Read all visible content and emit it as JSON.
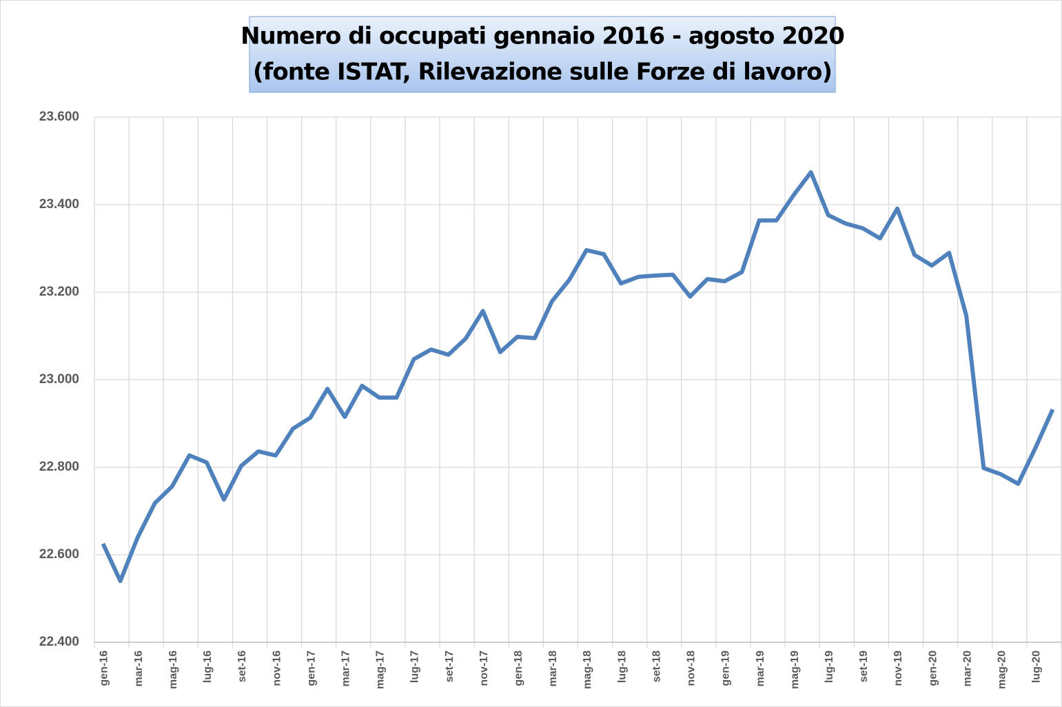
{
  "chart_data": {
    "type": "line",
    "title": "Numero di occupati gennaio 2016 - agosto 2020",
    "subtitle": "(fonte ISTAT, Rilevazione sulle Forze di lavoro)",
    "categories": [
      "gen-16",
      null,
      "mar-16",
      null,
      "mag-16",
      null,
      "lug-16",
      null,
      "set-16",
      null,
      "nov-16",
      null,
      "gen-17",
      null,
      "mar-17",
      null,
      "mag-17",
      null,
      "lug-17",
      null,
      "set-17",
      null,
      "nov-17",
      null,
      "gen-18",
      null,
      "mar-18",
      null,
      "mag-18",
      null,
      "lug-18",
      null,
      "set-18",
      null,
      "nov-18",
      null,
      "gen-19",
      null,
      "mar-19",
      null,
      "mag-19",
      null,
      "lug-19",
      null,
      "set-19",
      null,
      "nov-19",
      null,
      "gen-20",
      null,
      "mar-20",
      null,
      "mag-20",
      null,
      "lug-20",
      null
    ],
    "series": [
      {
        "color": "#4f81bd",
        "values": [
          22625,
          22540,
          22639,
          22718,
          22756,
          22827,
          22811,
          22726,
          22803,
          22836,
          22827,
          22888,
          22913,
          22979,
          22915,
          22986,
          22959,
          22959,
          23047,
          23069,
          23057,
          23094,
          23157,
          23063,
          23098,
          23095,
          23179,
          23228,
          23296,
          23287,
          23220,
          23235,
          23238,
          23240,
          23190,
          23230,
          23225,
          23246,
          23364,
          23364,
          23422,
          23474,
          23376,
          23357,
          23346,
          23323,
          23391,
          23285,
          23261,
          23290,
          23146,
          22798,
          22784,
          22762,
          22844,
          22932
        ]
      }
    ],
    "ylim": [
      22400,
      23600
    ],
    "yticks": [
      {
        "value": 22400,
        "label": "22.400"
      },
      {
        "value": 22600,
        "label": "22.600"
      },
      {
        "value": 22800,
        "label": "22.800"
      },
      {
        "value": 23000,
        "label": "23.000"
      },
      {
        "value": 23200,
        "label": "23.200"
      },
      {
        "value": 23400,
        "label": "23.400"
      },
      {
        "value": 23600,
        "label": "23.600"
      }
    ],
    "grid": true
  }
}
